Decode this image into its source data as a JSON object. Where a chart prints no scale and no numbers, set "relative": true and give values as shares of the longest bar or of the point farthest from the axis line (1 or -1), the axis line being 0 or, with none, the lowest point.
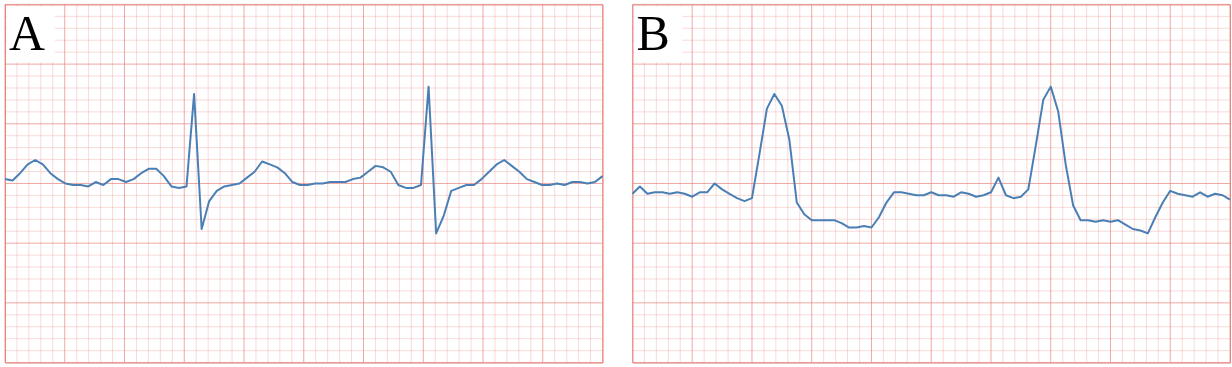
{
  "chart_data": [
    {
      "type": "line",
      "title": "A",
      "relative": true,
      "grid": true,
      "categories": [
        null,
        null,
        null,
        null,
        null,
        null,
        null,
        null,
        null,
        null,
        null,
        null,
        null,
        null,
        null,
        null,
        null,
        null,
        null,
        null,
        null,
        null,
        null,
        null,
        null,
        null,
        null,
        null,
        null,
        null,
        null,
        null,
        null,
        null,
        null,
        null,
        null,
        null,
        null,
        null,
        null,
        null,
        null,
        null,
        null,
        null,
        null,
        null,
        null,
        null,
        null,
        null,
        null,
        null,
        null,
        null,
        null,
        null,
        null,
        null,
        null,
        null,
        null,
        null,
        null,
        null,
        null,
        null,
        null,
        null,
        null,
        null,
        null,
        null,
        null,
        null,
        null,
        null,
        null,
        null
      ],
      "series": [
        {
          "color": "#4a7fb5",
          "values": [
            0.37,
            0.36,
            0.41,
            0.47,
            0.5,
            0.47,
            0.41,
            0.37,
            0.34,
            0.33,
            0.33,
            0.32,
            0.35,
            0.33,
            0.37,
            0.37,
            0.35,
            0.37,
            0.41,
            0.44,
            0.44,
            0.39,
            0.32,
            0.31,
            0.32,
            0.95,
            0.03,
            0.22,
            0.29,
            0.32,
            0.33,
            0.34,
            0.38,
            0.42,
            0.49,
            0.47,
            0.45,
            0.41,
            0.35,
            0.33,
            0.33,
            0.34,
            0.34,
            0.35,
            0.35,
            0.35,
            0.37,
            0.38,
            0.42,
            0.46,
            0.45,
            0.42,
            0.33,
            0.31,
            0.31,
            0.33,
            1.0,
            0,
            0.12,
            0.29,
            0.31,
            0.33,
            0.33,
            0.37,
            0.42,
            0.47,
            0.5,
            0.46,
            0.42,
            0.37,
            0.35,
            0.33,
            0.33,
            0.34,
            0.33,
            0.35,
            0.35,
            0.34,
            0.35,
            0.39
          ]
        }
      ]
    },
    {
      "type": "line",
      "title": "B",
      "relative": true,
      "grid": true,
      "categories": [
        null,
        null,
        null,
        null,
        null,
        null,
        null,
        null,
        null,
        null,
        null,
        null,
        null,
        null,
        null,
        null,
        null,
        null,
        null,
        null,
        null,
        null,
        null,
        null,
        null,
        null,
        null,
        null,
        null,
        null,
        null,
        null,
        null,
        null,
        null,
        null,
        null,
        null,
        null,
        null,
        null,
        null,
        null,
        null,
        null,
        null,
        null,
        null,
        null,
        null,
        null,
        null,
        null,
        null,
        null,
        null,
        null,
        null,
        null,
        null,
        null,
        null,
        null,
        null,
        null,
        null,
        null,
        null,
        null,
        null,
        null,
        null,
        null,
        null,
        null,
        null,
        null,
        null,
        null,
        null,
        null
      ],
      "series": [
        {
          "color": "#4a7fb5",
          "values": [
            0.27,
            0.32,
            0.27,
            0.28,
            0.28,
            0.27,
            0.28,
            0.27,
            0.25,
            0.28,
            0.28,
            0.34,
            0.3,
            0.27,
            0.24,
            0.22,
            0.24,
            0.54,
            0.85,
            0.95,
            0.87,
            0.64,
            0.21,
            0.13,
            0.09,
            0.09,
            0.09,
            0.09,
            0.07,
            0.04,
            0.04,
            0.05,
            0.04,
            0.11,
            0.21,
            0.28,
            0.28,
            0.27,
            0.26,
            0.26,
            0.28,
            0.26,
            0.26,
            0.25,
            0.28,
            0.27,
            0.25,
            0.26,
            0.28,
            0.38,
            0.26,
            0.24,
            0.25,
            0.3,
            0.6,
            0.91,
            1.0,
            0.83,
            0.47,
            0.19,
            0.09,
            0.09,
            0.08,
            0.09,
            0.08,
            0.09,
            0.06,
            0.03,
            0.02,
            0,
            0.11,
            0.21,
            0.29,
            0.27,
            0.26,
            0.25,
            0.28,
            0.25,
            0.27,
            0.26,
            0.23
          ]
        }
      ]
    }
  ]
}
